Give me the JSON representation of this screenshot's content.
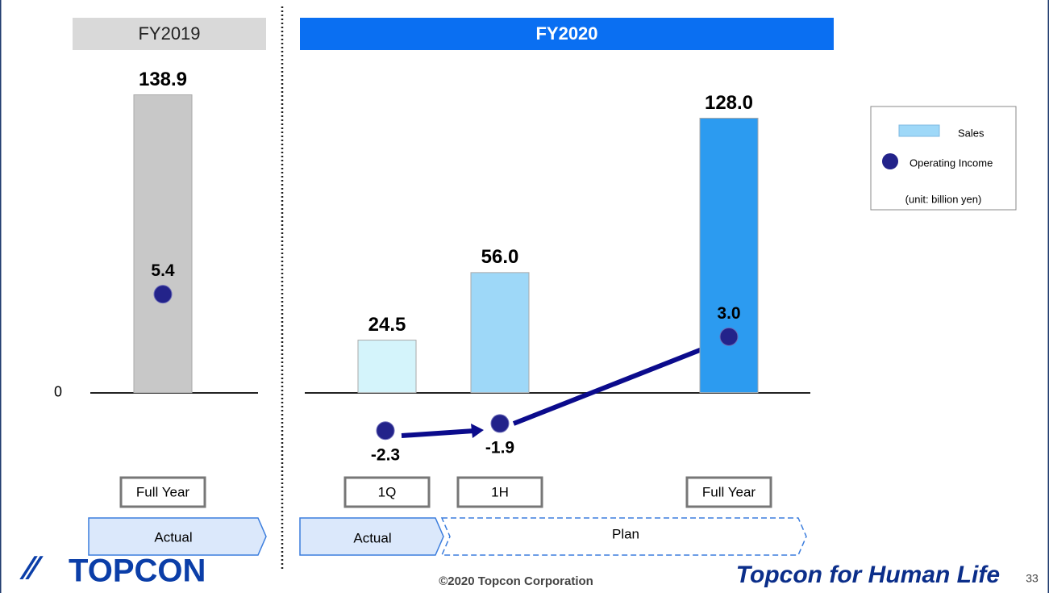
{
  "chart_data": {
    "type": "bar",
    "group_labels": [
      "FY2019",
      "FY2020"
    ],
    "status_labels": [
      "Actual",
      "Actual",
      "Plan"
    ],
    "categories": [
      "Full Year",
      "1Q",
      "1H",
      "Full Year"
    ],
    "series": [
      {
        "name": "Sales",
        "colors": [
          "#c8c8c8",
          "#d4f4fb",
          "#9ed8f8",
          "#2c9bf0"
        ],
        "color": "#9ed8f8",
        "values": [
          138.9,
          24.5,
          56,
          128
        ],
        "value_labels": [
          "138.9",
          "24.5",
          "56.0",
          "128.0"
        ]
      },
      {
        "name": "Operating Income",
        "color": "#23238a",
        "axis": "y2",
        "values": [
          5.4,
          -2.3,
          -1.9,
          3
        ],
        "value_labels": [
          "5.4",
          "-2.3",
          "-1.9",
          "3.0"
        ]
      }
    ],
    "ylim": [
      -40,
      150
    ],
    "yticks": [
      0
    ],
    "y2lim": [
      -5,
      18
    ],
    "unit_note": "(unit: billion yen)"
  },
  "footer": {
    "logo": "TOPCON",
    "copyright": "©2020 Topcon Corporation",
    "tagline": "Topcon for Human Life",
    "page": "33"
  }
}
